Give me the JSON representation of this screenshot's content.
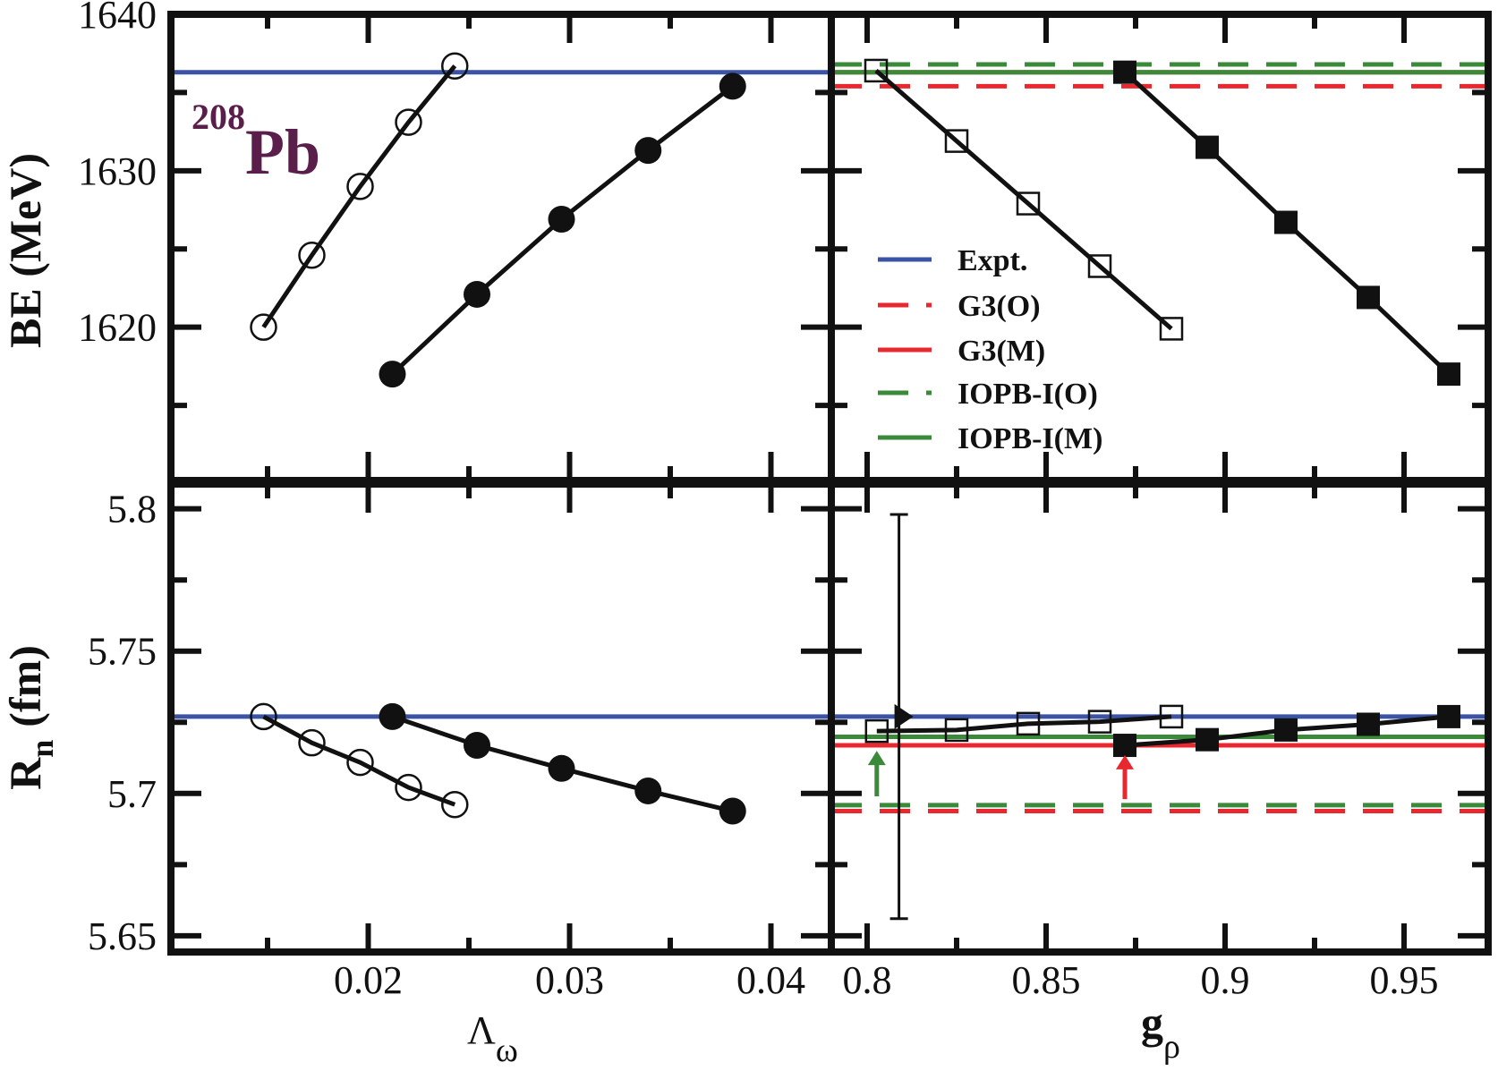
{
  "chart_data": {
    "type": "scatter",
    "annotation": {
      "mass_number": "208",
      "element": "Pb"
    },
    "colors": {
      "expt": "#3a53a4",
      "g3": "#e8282e",
      "iopb": "#3a8a3a",
      "series": "#111111",
      "annotation": "#5a1e4a"
    },
    "legend": {
      "placement": "top-right panel, center-left",
      "entries": [
        {
          "label": "Expt.",
          "color": "#3a53a4",
          "style": "solid"
        },
        {
          "label": "G3(O)",
          "color": "#e8282e",
          "style": "dashed"
        },
        {
          "label": "G3(M)",
          "color": "#e8282e",
          "style": "solid"
        },
        {
          "label": "IOPB-I(O)",
          "color": "#3a8a3a",
          "style": "dashed"
        },
        {
          "label": "IOPB-I(M)",
          "color": "#3a8a3a",
          "style": "solid"
        }
      ]
    },
    "panels": [
      {
        "id": "be-vs-lambda",
        "xlabel": "Λ",
        "xlabel_sub": "ω",
        "ylabel": "BE (MeV)",
        "xlim": [
          0.0102,
          0.043
        ],
        "ylim": [
          1610.2,
          1640
        ],
        "xticks": [
          0.02,
          0.03,
          0.04
        ],
        "xtick_labels": [
          "0.02",
          "0.03",
          "0.04"
        ],
        "xminor": [
          0.015,
          0.025,
          0.035
        ],
        "yticks": [
          1620,
          1630,
          1640
        ],
        "ytick_labels": [
          "1620",
          "1630",
          "1640"
        ],
        "yminor": [
          1615,
          1625,
          1635
        ],
        "hlines": [
          {
            "name": "Expt.",
            "y": 1636.3,
            "color": "#3a53a4",
            "style": "solid"
          }
        ],
        "series": [
          {
            "name": "open-circles",
            "marker": "circle-open",
            "x": [
              0.0148,
              0.0172,
              0.0196,
              0.022,
              0.0243
            ],
            "y": [
              1620.0,
              1624.6,
              1629.0,
              1633.1,
              1636.7
            ]
          },
          {
            "name": "filled-circles",
            "marker": "circle-filled",
            "x": [
              0.0212,
              0.0254,
              0.0296,
              0.0339,
              0.0381
            ],
            "y": [
              1617.0,
              1622.1,
              1626.9,
              1631.3,
              1635.4
            ]
          }
        ]
      },
      {
        "id": "be-vs-grho",
        "xlabel": "g",
        "xlabel_sub": "ρ",
        "xlim": [
          0.79,
          0.9735
        ],
        "ylim": [
          1610.2,
          1640
        ],
        "xticks": [
          0.8,
          0.85,
          0.9,
          0.95
        ],
        "xtick_labels": [
          "0.8",
          "0.85",
          "0.9",
          "0.95"
        ],
        "xminor": [
          0.825,
          0.875,
          0.925
        ],
        "yticks": [
          1620,
          1630,
          1640
        ],
        "ytick_labels": [],
        "yminor": [
          1615,
          1625,
          1635
        ],
        "hlines": [
          {
            "name": "G3(O)",
            "y": 1635.4,
            "color": "#e8282e",
            "style": "dashed"
          },
          {
            "name": "IOPB-I(O)",
            "y": 1636.8,
            "color": "#3a8a3a",
            "style": "dashed"
          },
          {
            "name": "G3(M)",
            "y": 1636.3,
            "color": "#e8282e",
            "style": "solid"
          },
          {
            "name": "IOPB-I(M)",
            "y": 1636.3,
            "color": "#3a8a3a",
            "style": "solid"
          }
        ],
        "series": [
          {
            "name": "open-squares",
            "marker": "square-open",
            "x": [
              0.8025,
              0.825,
              0.845,
              0.865,
              0.885
            ],
            "y": [
              1636.4,
              1631.9,
              1627.9,
              1623.9,
              1619.9
            ]
          },
          {
            "name": "filled-squares",
            "marker": "square-filled",
            "x": [
              0.872,
              0.895,
              0.917,
              0.94,
              0.9625
            ],
            "y": [
              1636.3,
              1631.5,
              1626.7,
              1621.9,
              1617.0
            ]
          }
        ]
      },
      {
        "id": "rn-vs-lambda",
        "xlabel": "Λ",
        "xlabel_sub": "ω",
        "ylabel": "R",
        "ylabel_sub": "n",
        "ylabel_unit": "(fm)",
        "xlim": [
          0.0102,
          0.043
        ],
        "ylim": [
          5.6443,
          5.8087
        ],
        "xticks": [
          0.02,
          0.03,
          0.04
        ],
        "xtick_labels": [
          "0.02",
          "0.03",
          "0.04"
        ],
        "xminor": [
          0.015,
          0.025,
          0.035
        ],
        "yticks": [
          5.65,
          5.7,
          5.75,
          5.8
        ],
        "ytick_labels": [
          "5.65",
          "5.7",
          "5.75",
          "5.8"
        ],
        "yminor": [
          5.675,
          5.725,
          5.775
        ],
        "hlines": [
          {
            "name": "Expt.",
            "y": 5.727,
            "color": "#3a53a4",
            "style": "solid"
          }
        ],
        "series": [
          {
            "name": "open-circles",
            "marker": "circle-open",
            "x": [
              0.0148,
              0.0172,
              0.0196,
              0.022,
              0.0243
            ],
            "y": [
              5.727,
              5.7178,
              5.7109,
              5.7021,
              5.6961
            ]
          },
          {
            "name": "filled-circles",
            "marker": "circle-filled",
            "x": [
              0.0212,
              0.0254,
              0.0296,
              0.0339,
              0.0381
            ],
            "y": [
              5.727,
              5.7169,
              5.7088,
              5.7009,
              5.6938
            ]
          }
        ]
      },
      {
        "id": "rn-vs-grho",
        "xlabel": "g",
        "xlabel_sub": "ρ",
        "xlim": [
          0.79,
          0.9735
        ],
        "ylim": [
          5.6443,
          5.8087
        ],
        "xticks": [
          0.8,
          0.85,
          0.9,
          0.95
        ],
        "xtick_labels": [
          "0.8",
          "0.85",
          "0.9",
          "0.95"
        ],
        "xminor": [
          0.825,
          0.875,
          0.925
        ],
        "yticks": [
          5.65,
          5.7,
          5.75,
          5.8
        ],
        "ytick_labels": [],
        "yminor": [
          5.675,
          5.725,
          5.775
        ],
        "hlines": [
          {
            "name": "Expt.",
            "y": 5.727,
            "color": "#3a53a4",
            "style": "solid"
          },
          {
            "name": "IOPB-I(M)",
            "y": 5.7199,
            "color": "#3a8a3a",
            "style": "solid"
          },
          {
            "name": "G3(M)",
            "y": 5.7169,
            "color": "#e8282e",
            "style": "solid"
          },
          {
            "name": "IOPB-I(O)",
            "y": 5.6959,
            "color": "#3a8a3a",
            "style": "dashed"
          },
          {
            "name": "G3(O)",
            "y": 5.6938,
            "color": "#e8282e",
            "style": "dashed"
          }
        ],
        "series": [
          {
            "name": "open-squares",
            "marker": "square-open",
            "x": [
              0.8027,
              0.825,
              0.845,
              0.865,
              0.885
            ],
            "y": [
              5.7219,
              5.7223,
              5.7245,
              5.7252,
              5.727
            ]
          },
          {
            "name": "filled-squares",
            "marker": "square-filled",
            "x": [
              0.872,
              0.895,
              0.917,
              0.94,
              0.9625
            ],
            "y": [
              5.7169,
              5.7189,
              5.7223,
              5.7243,
              5.727
            ]
          }
        ],
        "experiment_point": {
          "x": 0.8089,
          "y": 5.727,
          "err_low": 5.656,
          "err_high": 5.798,
          "marker": "triangle-right"
        },
        "arrows": [
          {
            "x": 0.8027,
            "y_from": 5.699,
            "y_to": 5.715,
            "color": "#3a8a3a"
          },
          {
            "x": 0.872,
            "y_from": 5.698,
            "y_to": 5.7135,
            "color": "#e8282e"
          }
        ]
      }
    ]
  }
}
